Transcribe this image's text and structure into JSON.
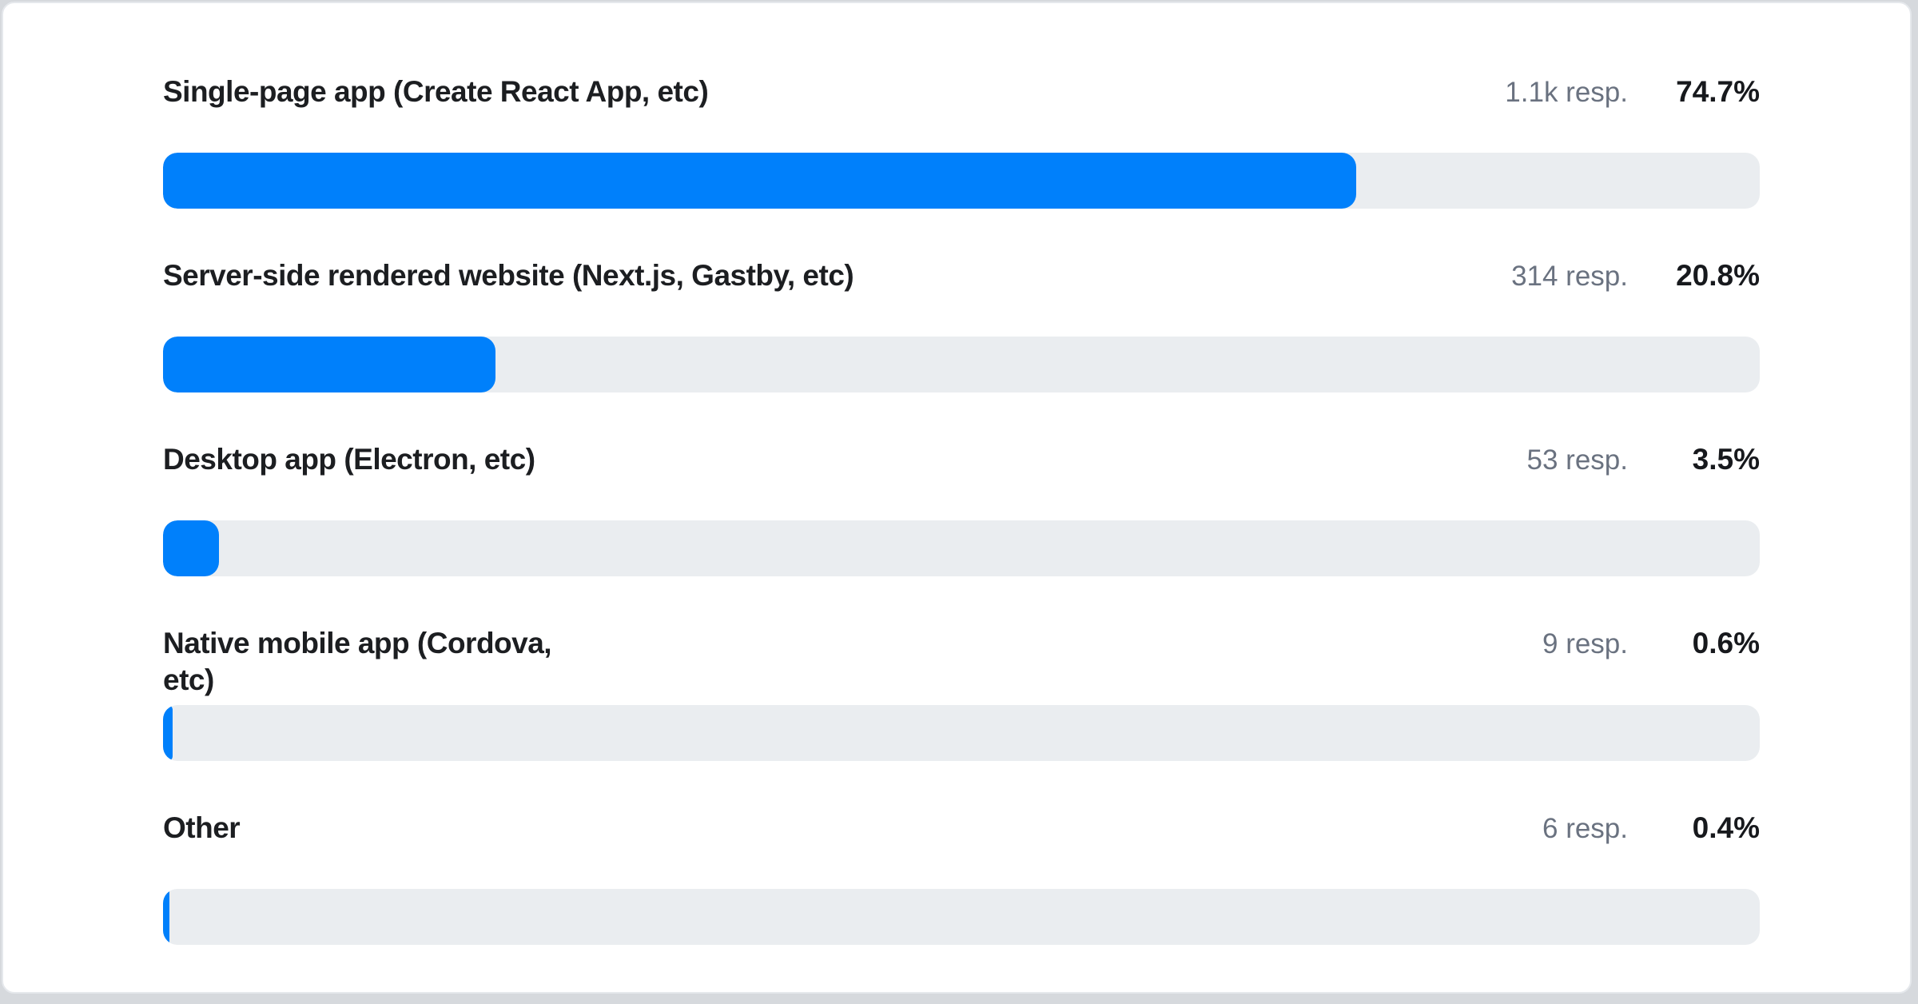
{
  "chart_data": {
    "type": "bar",
    "orientation": "horizontal",
    "title": "",
    "xlabel": "",
    "ylabel": "",
    "xlim": [
      0,
      100
    ],
    "grid": false,
    "categories": [
      "Single-page app (Create React App, etc)",
      "Server-side rendered website (Next.js, Gastby, etc)",
      "Desktop app (Electron, etc)",
      "Native mobile app (Cordova, etc)",
      "Other"
    ],
    "series": [
      {
        "name": "percent_of_responses",
        "values": [
          74.7,
          20.8,
          3.5,
          0.6,
          0.4
        ]
      }
    ],
    "responses_display": [
      "1.1k resp.",
      "314 resp.",
      "53 resp.",
      "9 resp.",
      "6 resp."
    ],
    "percent_display": [
      "74.7%",
      "20.8%",
      "3.5%",
      "0.6%",
      "0.4%"
    ]
  },
  "colors": {
    "bar_fill": "#0080fb",
    "bar_track": "#eaedf0",
    "label_text": "#1c1e21",
    "responses_text": "#6a7280",
    "percent_text": "#17191d",
    "card_background": "#ffffff",
    "card_border": "#e5e8ec",
    "page_background": "#d6d9dd"
  },
  "rows": [
    {
      "label": "Single-page app (Create React App, etc)",
      "responses": "1.1k resp.",
      "percent": "74.7%",
      "percent_value": 74.7
    },
    {
      "label": "Server-side rendered website (Next.js, Gastby, etc)",
      "responses": "314 resp.",
      "percent": "20.8%",
      "percent_value": 20.8
    },
    {
      "label": "Desktop app (Electron, etc)",
      "responses": "53 resp.",
      "percent": "3.5%",
      "percent_value": 3.5
    },
    {
      "label": "Native mobile app (Cordova,\netc)",
      "responses": "9 resp.",
      "percent": "0.6%",
      "percent_value": 0.6
    },
    {
      "label": "Other",
      "responses": "6 resp.",
      "percent": "0.4%",
      "percent_value": 0.4
    }
  ]
}
